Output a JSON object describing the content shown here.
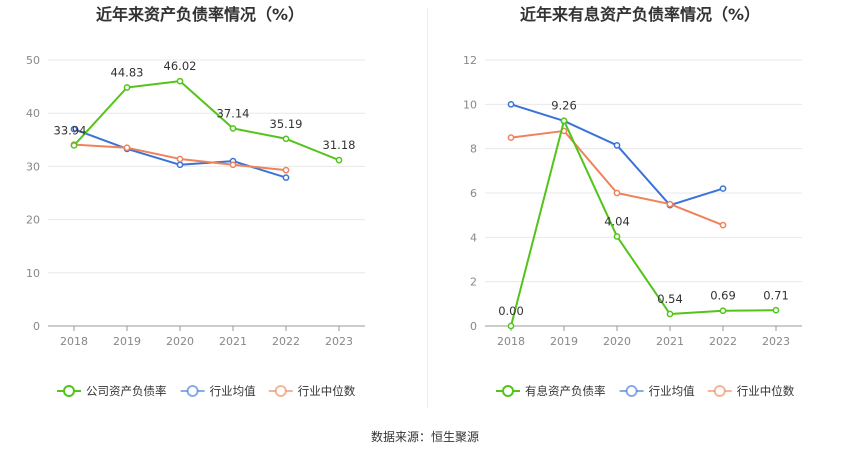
{
  "source_label": "数据来源：",
  "source_name": "恒生聚源",
  "chart_data": [
    {
      "type": "line",
      "title": "近年来资产负债率情况（%）",
      "categories": [
        "2018",
        "2019",
        "2020",
        "2021",
        "2022",
        "2023"
      ],
      "ylim": [
        0,
        50
      ],
      "yticks": [
        0,
        10,
        20,
        30,
        40,
        50
      ],
      "grid": true,
      "legend_position": "bottom",
      "series": [
        {
          "name": "公司资产负债率",
          "color": "#52c41a",
          "values": [
            33.94,
            44.83,
            46.02,
            37.14,
            35.19,
            31.18
          ],
          "labels": [
            "33.94",
            "44.83",
            "46.02",
            "37.14",
            "35.19",
            "31.18"
          ]
        },
        {
          "name": "行业均值",
          "color": "#3a73d8",
          "values": [
            37.0,
            33.3,
            30.3,
            31.0,
            27.9,
            null
          ]
        },
        {
          "name": "行业中位数",
          "color": "#f0825a",
          "values": [
            34.1,
            33.5,
            31.4,
            30.3,
            29.3,
            null
          ]
        }
      ]
    },
    {
      "type": "line",
      "title": "近年来有息资产负债率情况（%）",
      "categories": [
        "2018",
        "2019",
        "2020",
        "2021",
        "2022",
        "2023"
      ],
      "ylim": [
        0,
        12
      ],
      "yticks": [
        0,
        2,
        4,
        6,
        8,
        10,
        12
      ],
      "grid": true,
      "legend_position": "bottom",
      "series": [
        {
          "name": "有息资产负债率",
          "color": "#52c41a",
          "values": [
            0.0,
            9.26,
            4.04,
            0.54,
            0.69,
            0.71
          ],
          "labels": [
            "0.00",
            "9.26",
            "4.04",
            "0.54",
            "0.69",
            "0.71"
          ]
        },
        {
          "name": "行业均值",
          "color": "#3a73d8",
          "values": [
            10.0,
            9.25,
            8.15,
            5.45,
            6.2,
            null
          ]
        },
        {
          "name": "行业中位数",
          "color": "#f0825a",
          "values": [
            8.5,
            8.8,
            6.0,
            5.5,
            4.55,
            null
          ]
        }
      ]
    }
  ]
}
